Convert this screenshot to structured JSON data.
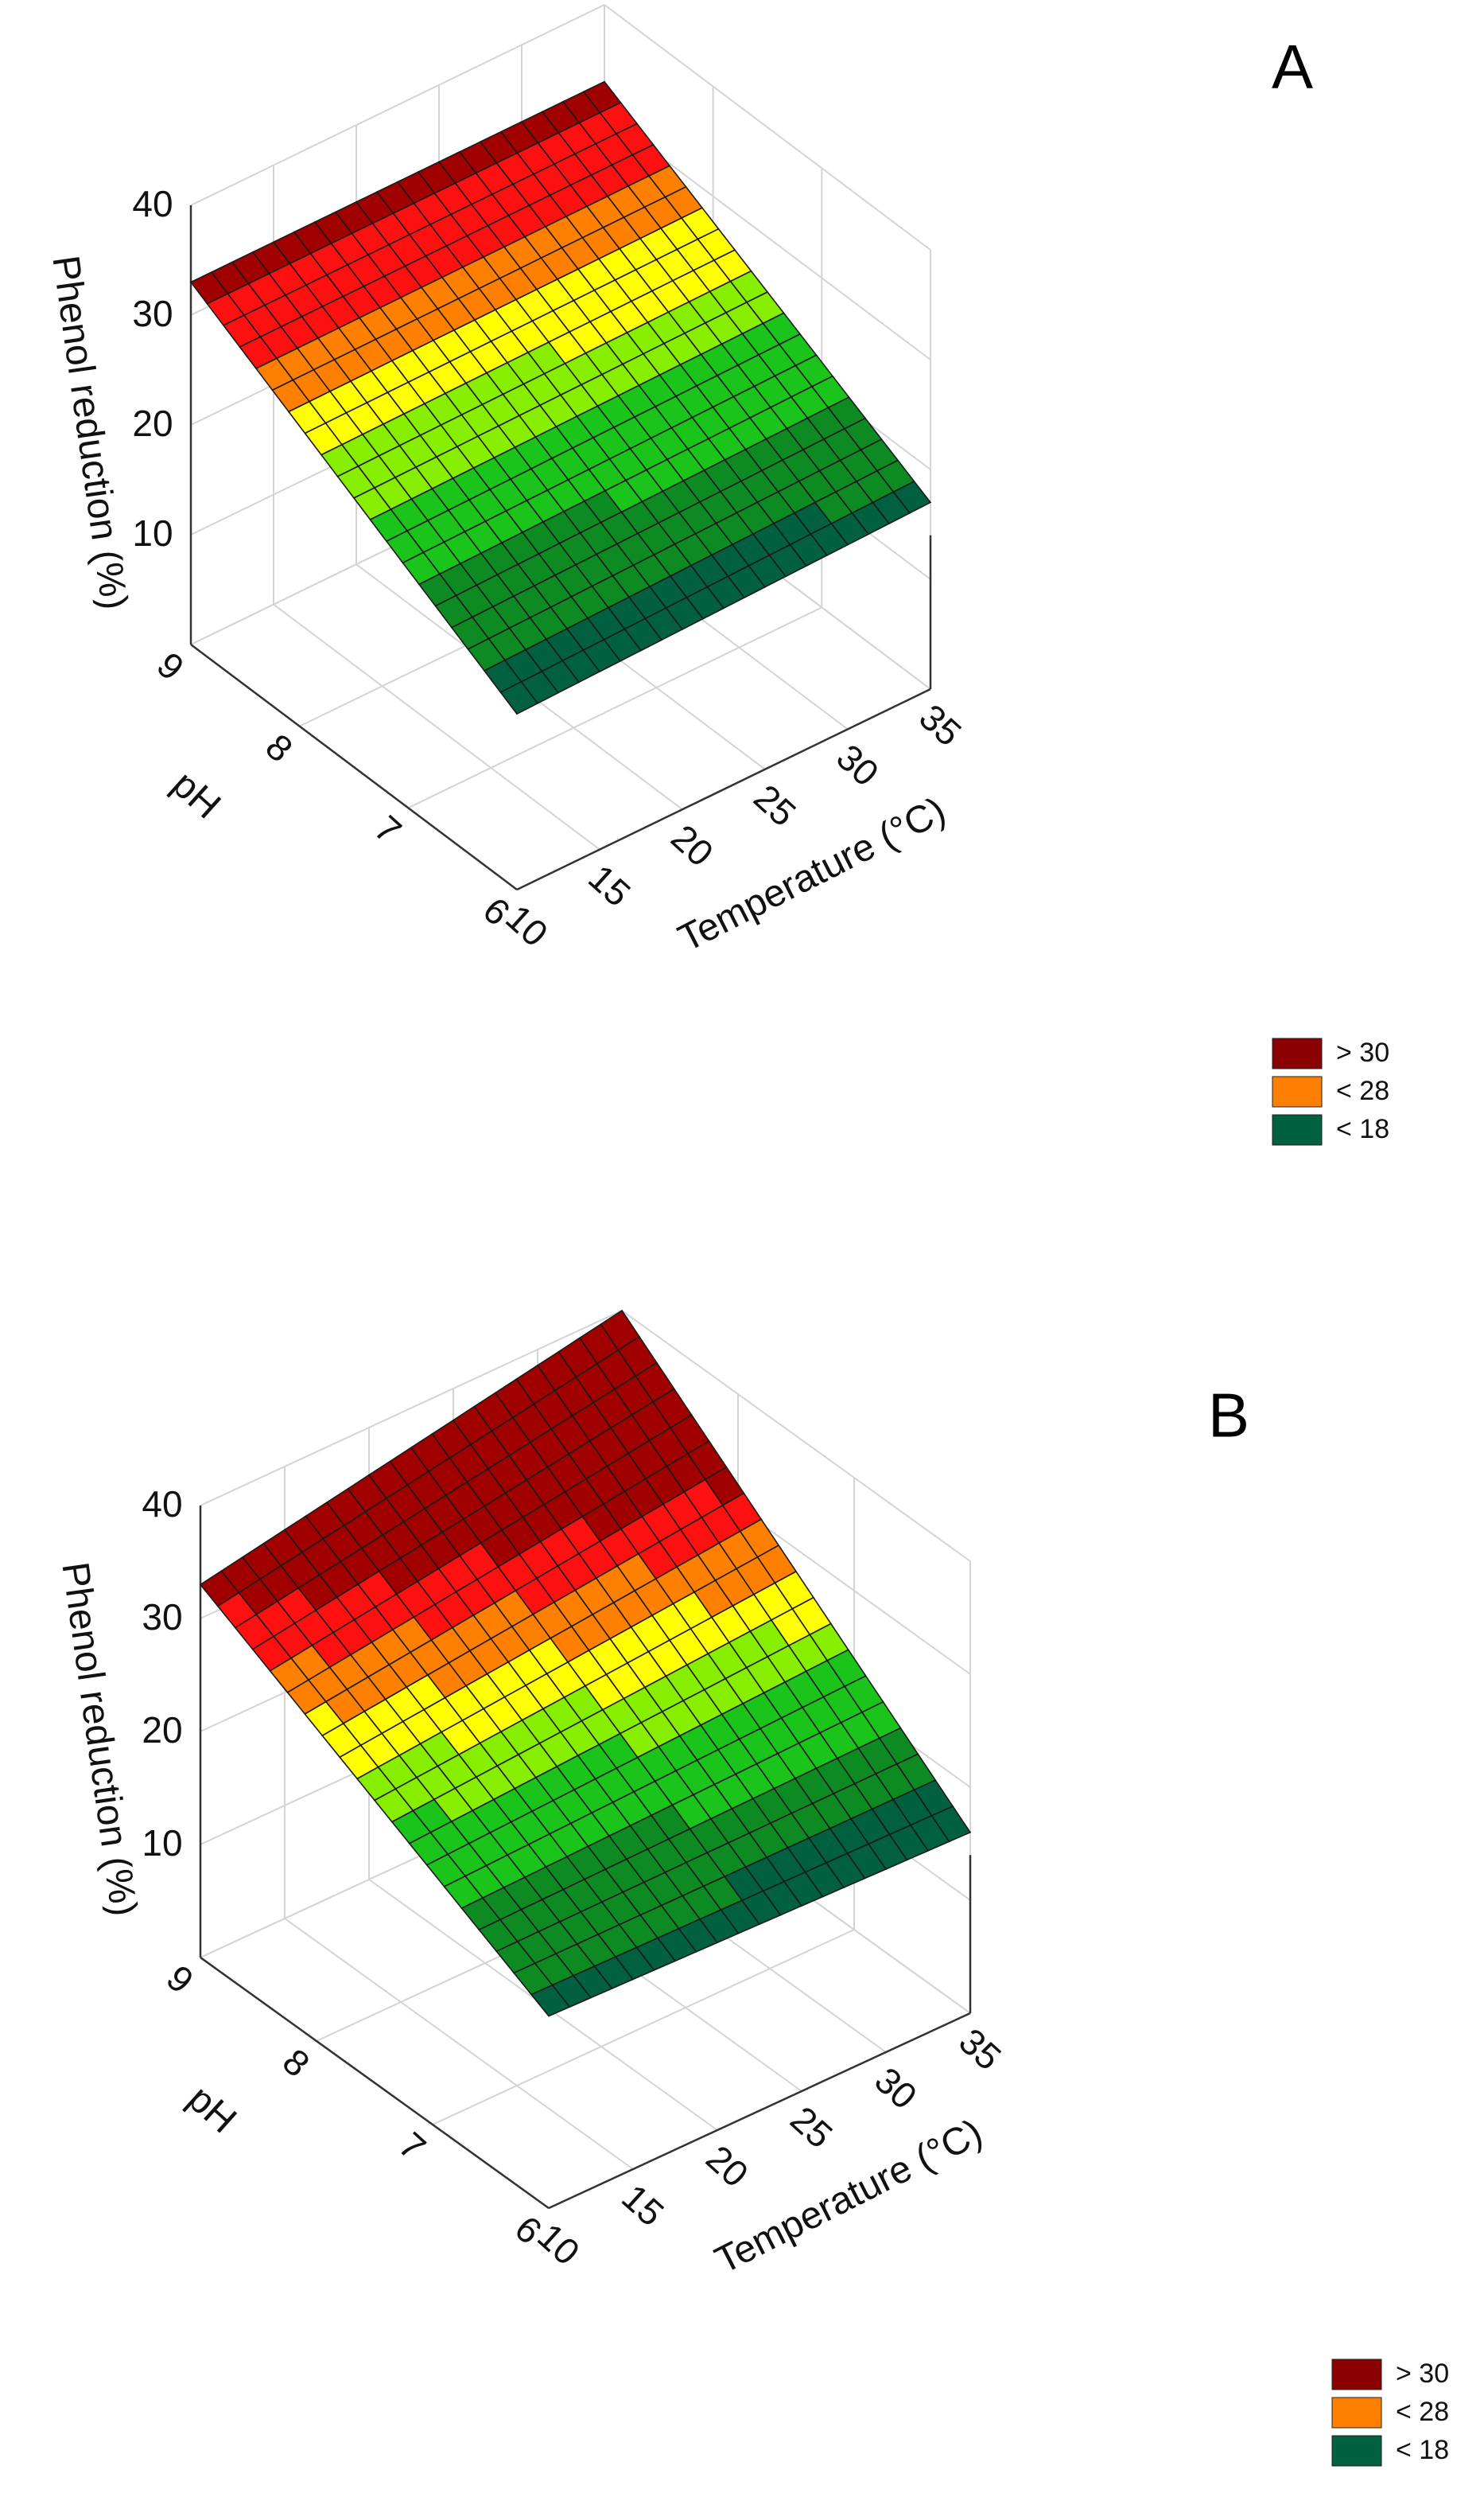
{
  "chart_data": [
    {
      "type": "surface",
      "panel": "A",
      "zlabel": "Phenol reduction (%)",
      "xlabel": "Temperature (°C)",
      "ylabel": "pH",
      "x_ticks": [
        "10",
        "15",
        "20",
        "25",
        "30",
        "35"
      ],
      "y_ticks": [
        "6",
        "7",
        "8",
        "9"
      ],
      "z_ticks": [
        "10",
        "20",
        "30",
        "40"
      ],
      "xlim": [
        10,
        35
      ],
      "ylim": [
        6,
        9
      ],
      "zlim": [
        0,
        40
      ],
      "corners": {
        "x10_ph9": 33,
        "x35_ph9": 33,
        "x10_ph6": 16,
        "x35_ph6": 17
      },
      "legend": [
        {
          "label": "> 30",
          "color": "#8b0000"
        },
        {
          "label": "< 28",
          "color": "#ff8000"
        },
        {
          "label": "< 18",
          "color": "#006040"
        }
      ]
    },
    {
      "type": "surface",
      "panel": "B",
      "zlabel": "Phenol reduction (%)",
      "xlabel": "Temperature (°C)",
      "ylabel": "pH",
      "x_ticks": [
        "10",
        "15",
        "20",
        "25",
        "30",
        "35"
      ],
      "y_ticks": [
        "6",
        "7",
        "8",
        "9"
      ],
      "z_ticks": [
        "10",
        "20",
        "30",
        "40"
      ],
      "xlim": [
        10,
        35
      ],
      "ylim": [
        6,
        9
      ],
      "zlim": [
        0,
        40
      ],
      "corners": {
        "x10_ph9": 33,
        "x35_ph9": 40,
        "x10_ph6": 17,
        "x35_ph6": 16
      },
      "legend": [
        {
          "label": "> 30",
          "color": "#8b0000"
        },
        {
          "label": "< 28",
          "color": "#ff8000"
        },
        {
          "label": "< 18",
          "color": "#006040"
        }
      ]
    }
  ]
}
